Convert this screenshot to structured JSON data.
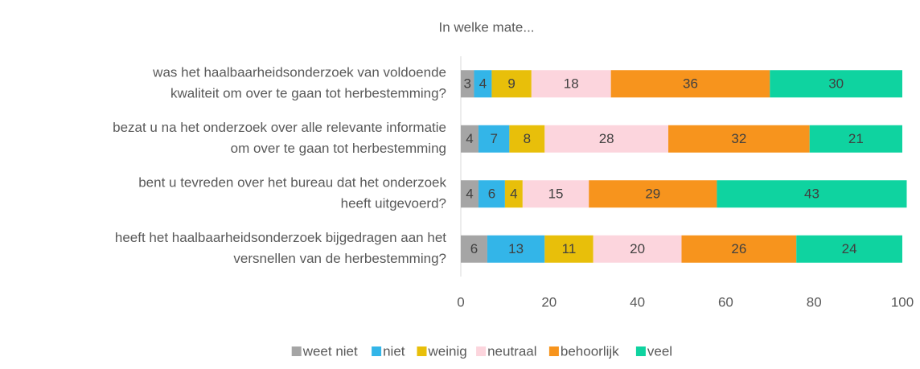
{
  "chart_data": {
    "type": "stacked_bar_horizontal",
    "title": "In welke mate...",
    "categories": [
      [
        "was het haalbaarheidsonderzoek van voldoende",
        "kwaliteit om over te gaan tot herbestemming?"
      ],
      [
        "bezat u na het onderzoek over alle relevante informatie",
        "om over te gaan tot herbestemming"
      ],
      [
        "bent u tevreden over het bureau dat het onderzoek",
        "heeft uitgevoerd?"
      ],
      [
        "heeft het haalbaarheidsonderzoek bijgedragen aan het",
        "versnellen van de herbestemming?"
      ]
    ],
    "series": [
      {
        "name": "weet niet",
        "color": "#a5a5a5",
        "values": [
          3,
          4,
          4,
          6
        ]
      },
      {
        "name": "niet",
        "color": "#33b5e8",
        "values": [
          4,
          7,
          6,
          13
        ]
      },
      {
        "name": "weinig",
        "color": "#e8bf0a",
        "values": [
          9,
          8,
          4,
          11
        ]
      },
      {
        "name": "neutraal",
        "color": "#fcd5dd",
        "values": [
          18,
          28,
          15,
          20
        ]
      },
      {
        "name": "behoorlijk",
        "color": "#f7941d",
        "values": [
          36,
          32,
          29,
          26
        ]
      },
      {
        "name": "veel",
        "color": "#0fd3a0",
        "values": [
          30,
          21,
          43,
          24
        ]
      }
    ],
    "xlim": [
      0,
      100
    ],
    "xticks": [
      0,
      20,
      40,
      60,
      80,
      100
    ],
    "legend": "bottom"
  }
}
